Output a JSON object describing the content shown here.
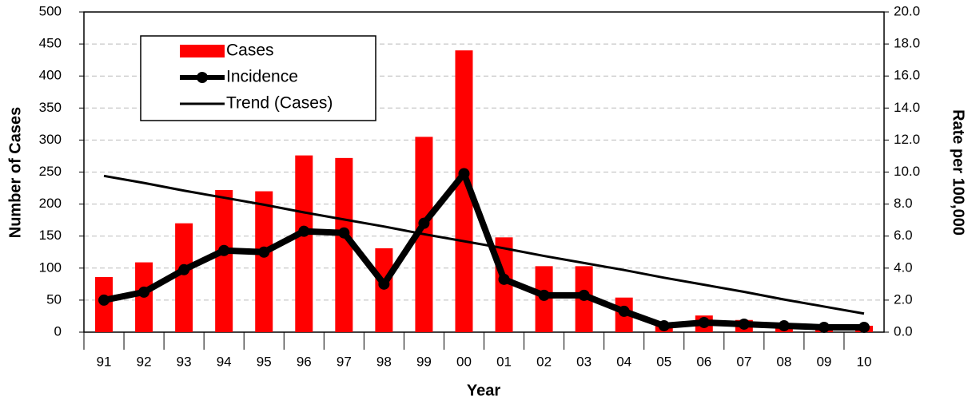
{
  "chart_data": {
    "type": "bar",
    "x_label": "Year",
    "y_label": "Number of Cases",
    "y2_label": "Rate per 100,000",
    "categories": [
      "91",
      "92",
      "93",
      "94",
      "95",
      "96",
      "97",
      "98",
      "99",
      "00",
      "01",
      "02",
      "03",
      "04",
      "05",
      "06",
      "07",
      "08",
      "09",
      "10"
    ],
    "series": [
      {
        "name": "Cases",
        "type": "bar",
        "color": "#ff0000",
        "values": [
          86,
          109,
          170,
          222,
          220,
          276,
          272,
          131,
          305,
          440,
          148,
          103,
          103,
          54,
          12,
          26,
          19,
          12,
          8,
          10
        ]
      },
      {
        "name": "Incidence",
        "type": "line",
        "axis": "y2",
        "color": "#000000",
        "values": [
          2.0,
          2.5,
          3.9,
          5.1,
          5.0,
          6.3,
          6.2,
          3.0,
          6.8,
          9.9,
          3.3,
          2.3,
          2.3,
          1.3,
          0.4,
          0.6,
          0.5,
          0.4,
          0.3,
          0.3
        ]
      },
      {
        "name": "Trend (Cases)",
        "type": "trend",
        "color": "#000000",
        "values": [
          244,
          233,
          221,
          210,
          199,
          187,
          176,
          165,
          153,
          142,
          131,
          119,
          108,
          97,
          85,
          74,
          63,
          51,
          40,
          29
        ]
      }
    ],
    "ylim": [
      0,
      500
    ],
    "yticks": [
      0,
      50,
      100,
      150,
      200,
      250,
      300,
      350,
      400,
      450,
      500
    ],
    "y2lim": [
      0,
      20
    ],
    "y2ticks": [
      {
        "value": 0,
        "label": "0.0"
      },
      {
        "value": 2,
        "label": "2.0"
      },
      {
        "value": 4,
        "label": "4.0"
      },
      {
        "value": 6,
        "label": "6.0"
      },
      {
        "value": 8,
        "label": "8.0"
      },
      {
        "value": 10,
        "label": "10.0"
      },
      {
        "value": 12,
        "label": "12.0"
      },
      {
        "value": 14,
        "label": "14.0"
      },
      {
        "value": 16,
        "label": "16.0"
      },
      {
        "value": 18,
        "label": "18.0"
      },
      {
        "value": 20,
        "label": "20.0"
      }
    ],
    "grid": true
  }
}
